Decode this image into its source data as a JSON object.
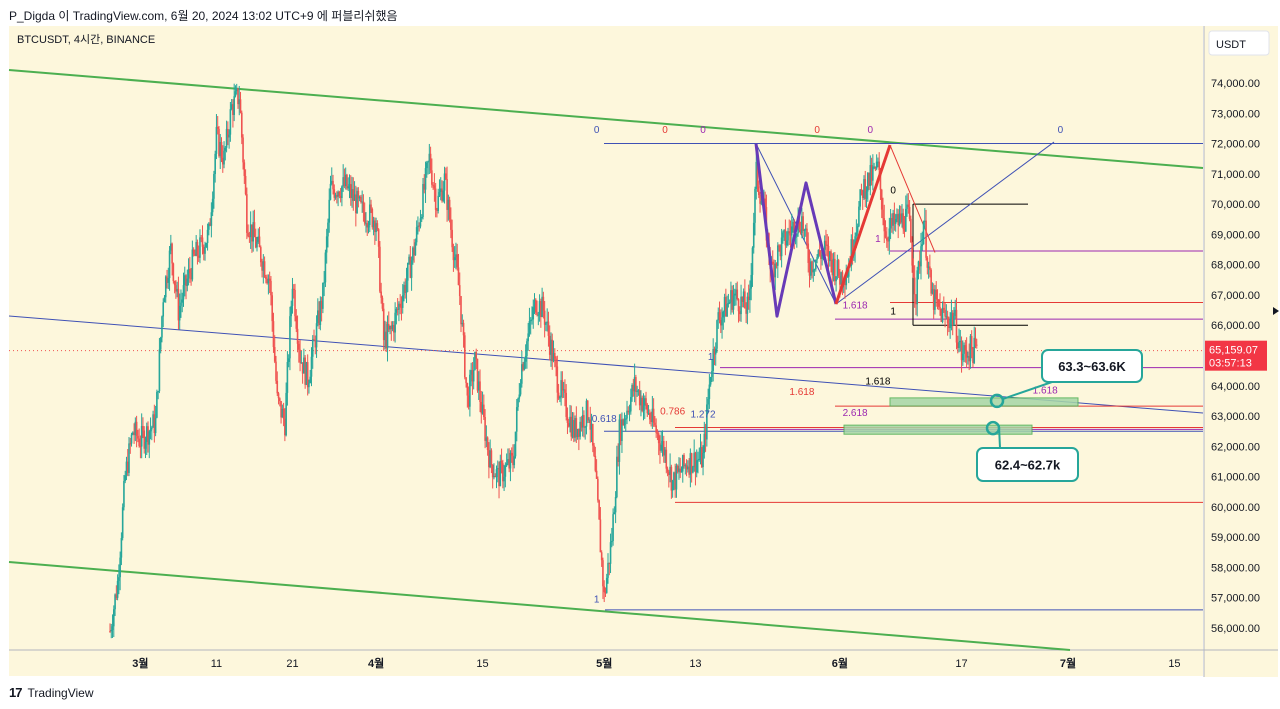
{
  "header": {
    "publisher_line": "P_Digda 이 TradingView.com, 6월 20, 2024 13:02 UTC+9 에 퍼블리쉬했음"
  },
  "footer": {
    "logo_mark": "17",
    "logo_text": "TradingView"
  },
  "colors": {
    "background": "#fdf7dc",
    "channel_green": "#4caf50",
    "candle_up": "#26a69a",
    "candle_down": "#ef5350",
    "fib_blue": "#3f51b5",
    "fib_purple": "#9c27b0",
    "fib_red": "#e53935",
    "pattern_purple": "#673ab7",
    "pattern_red": "#e53935",
    "callout_border": "#26a69a",
    "price_badge": "#f23645"
  },
  "chart_data": {
    "type": "candlestick",
    "symbol_label": "BTCUSDT, 4시간, BINANCE",
    "currency_label": "USDT",
    "ylim": [
      55300,
      75000
    ],
    "y_ticks": [
      "74,000.00",
      "73,000.00",
      "72,000.00",
      "71,000.00",
      "70,000.00",
      "69,000.00",
      "68,000.00",
      "67,000.00",
      "66,000.00",
      "65,000.00",
      "64,000.00",
      "63,000.00",
      "62,000.00",
      "61,000.00",
      "60,000.00",
      "59,000.00",
      "58,000.00",
      "57,000.00",
      "56,000.00"
    ],
    "y_tick_values": [
      74000,
      73000,
      72000,
      71000,
      70000,
      69000,
      68000,
      67000,
      66000,
      65000,
      64000,
      63000,
      62000,
      61000,
      60000,
      59000,
      58000,
      57000,
      56000
    ],
    "x_ticks": [
      {
        "label": "3월",
        "date": "2024-03-01",
        "bold": true
      },
      {
        "label": "11",
        "date": "2024-03-11",
        "bold": false
      },
      {
        "label": "21",
        "date": "2024-03-21",
        "bold": false
      },
      {
        "label": "4월",
        "date": "2024-04-01",
        "bold": true
      },
      {
        "label": "15",
        "date": "2024-04-15",
        "bold": false
      },
      {
        "label": "5월",
        "date": "2024-05-01",
        "bold": true
      },
      {
        "label": "13",
        "date": "2024-05-13",
        "bold": false
      },
      {
        "label": "6월",
        "date": "2024-06-01",
        "bold": true
      },
      {
        "label": "17",
        "date": "2024-06-17",
        "bold": false
      },
      {
        "label": "7월",
        "date": "2024-07-01",
        "bold": true
      },
      {
        "label": "15",
        "date": "2024-07-15",
        "bold": false
      }
    ],
    "price_now": "65,159.07",
    "price_value": 65159.07,
    "countdown": "03:57:13",
    "path_points": [
      [
        "2024-02-26",
        55900
      ],
      [
        "2024-02-27",
        57500
      ],
      [
        "2024-02-28",
        61000
      ],
      [
        "2024-02-29",
        62500
      ],
      [
        "2024-03-01",
        62200
      ],
      [
        "2024-03-03",
        62800
      ],
      [
        "2024-03-04",
        67000
      ],
      [
        "2024-03-05",
        68500
      ],
      [
        "2024-03-06",
        66500
      ],
      [
        "2024-03-08",
        68200
      ],
      [
        "2024-03-10",
        69000
      ],
      [
        "2024-03-11",
        72200
      ],
      [
        "2024-03-12",
        71500
      ],
      [
        "2024-03-13",
        73200
      ],
      [
        "2024-03-14",
        73600
      ],
      [
        "2024-03-15",
        69500
      ],
      [
        "2024-03-17",
        68200
      ],
      [
        "2024-03-18",
        67500
      ],
      [
        "2024-03-19",
        63500
      ],
      [
        "2024-03-20",
        62800
      ],
      [
        "2024-03-21",
        67500
      ],
      [
        "2024-03-22",
        65000
      ],
      [
        "2024-03-23",
        64200
      ],
      [
        "2024-03-25",
        67000
      ],
      [
        "2024-03-26",
        70500
      ],
      [
        "2024-03-28",
        70600
      ],
      [
        "2024-03-30",
        69800
      ],
      [
        "2024-04-01",
        69500
      ],
      [
        "2024-04-02",
        65500
      ],
      [
        "2024-04-03",
        65800
      ],
      [
        "2024-04-05",
        67500
      ],
      [
        "2024-04-06",
        68500
      ],
      [
        "2024-04-08",
        71500
      ],
      [
        "2024-04-09",
        70000
      ],
      [
        "2024-04-10",
        70800
      ],
      [
        "2024-04-12",
        67000
      ],
      [
        "2024-04-13",
        63500
      ],
      [
        "2024-04-14",
        64800
      ],
      [
        "2024-04-15",
        63000
      ],
      [
        "2024-04-16",
        61500
      ],
      [
        "2024-04-17",
        61000
      ],
      [
        "2024-04-19",
        61500
      ],
      [
        "2024-04-20",
        64500
      ],
      [
        "2024-04-22",
        66800
      ],
      [
        "2024-04-23",
        66500
      ],
      [
        "2024-04-25",
        64000
      ],
      [
        "2024-04-27",
        62500
      ],
      [
        "2024-04-29",
        63200
      ],
      [
        "2024-04-30",
        60500
      ],
      [
        "2024-05-01",
        57000
      ],
      [
        "2024-05-02",
        59000
      ],
      [
        "2024-05-03",
        62500
      ],
      [
        "2024-05-05",
        64000
      ],
      [
        "2024-05-07",
        63000
      ],
      [
        "2024-05-09",
        61800
      ],
      [
        "2024-05-10",
        60800
      ],
      [
        "2024-05-12",
        61500
      ],
      [
        "2024-05-14",
        61600
      ],
      [
        "2024-05-15",
        64500
      ],
      [
        "2024-05-16",
        66200
      ],
      [
        "2024-05-18",
        67000
      ],
      [
        "2024-05-20",
        66500
      ],
      [
        "2024-05-21",
        71000
      ],
      [
        "2024-05-22",
        69800
      ],
      [
        "2024-05-23",
        67800
      ],
      [
        "2024-05-24",
        68500
      ],
      [
        "2024-05-26",
        69300
      ],
      [
        "2024-05-27",
        69500
      ],
      [
        "2024-05-28",
        68000
      ],
      [
        "2024-05-30",
        68500
      ],
      [
        "2024-06-01",
        67600
      ],
      [
        "2024-06-02",
        67800
      ],
      [
        "2024-06-04",
        70500
      ],
      [
        "2024-06-06",
        71200
      ],
      [
        "2024-06-07",
        69000
      ],
      [
        "2024-06-08",
        69300
      ],
      [
        "2024-06-10",
        69600
      ],
      [
        "2024-06-11",
        67000
      ],
      [
        "2024-06-12",
        69500
      ],
      [
        "2024-06-13",
        67000
      ],
      [
        "2024-06-14",
        66500
      ],
      [
        "2024-06-15",
        66200
      ],
      [
        "2024-06-16",
        66300
      ],
      [
        "2024-06-17",
        65000
      ],
      [
        "2024-06-18",
        65200
      ],
      [
        "2024-06-19",
        65159
      ]
    ],
    "annotations": {
      "callouts": [
        {
          "text": "63.3~63.6K",
          "anchor_date": "2024-06-21",
          "anchor_price": 63500
        },
        {
          "text": "62.4~62.7k",
          "anchor_date": "2024-06-21",
          "anchor_price": 62600
        }
      ],
      "fib_labels": [
        {
          "text": "0",
          "date": "2024-04-30",
          "price": 72350,
          "color": "fib_blue"
        },
        {
          "text": "0",
          "date": "2024-05-09",
          "price": 72350,
          "color": "fib_red"
        },
        {
          "text": "0",
          "date": "2024-05-14",
          "price": 72350,
          "color": "fib_purple"
        },
        {
          "text": "0",
          "date": "2024-05-29",
          "price": 72350,
          "color": "fib_red"
        },
        {
          "text": "0",
          "date": "2024-06-05",
          "price": 72350,
          "color": "fib_purple"
        },
        {
          "text": "0",
          "date": "2024-06-30",
          "price": 72350,
          "color": "fib_blue"
        },
        {
          "text": "0",
          "date": "2024-06-08",
          "price": 70350,
          "color": "black"
        },
        {
          "text": "1",
          "date": "2024-06-06",
          "price": 68750,
          "color": "fib_purple"
        },
        {
          "text": "1",
          "date": "2024-06-08",
          "price": 66350,
          "color": "black"
        },
        {
          "text": "1.618",
          "date": "2024-06-03",
          "price": 66550,
          "color": "fib_purple"
        },
        {
          "text": "1",
          "date": "2024-05-15",
          "price": 64850,
          "color": "fib_blue"
        },
        {
          "text": "1.618",
          "date": "2024-06-06",
          "price": 64050,
          "color": "black"
        },
        {
          "text": "1.618",
          "date": "2024-05-27",
          "price": 63700,
          "color": "fib_red"
        },
        {
          "text": "1.618",
          "date": "2024-06-28",
          "price": 63750,
          "color": "fib_purple"
        },
        {
          "text": "0.786",
          "date": "2024-05-10",
          "price": 63050,
          "color": "fib_red"
        },
        {
          "text": "1.272",
          "date": "2024-05-14",
          "price": 62950,
          "color": "fib_blue"
        },
        {
          "text": "0.618",
          "date": "2024-05-01",
          "price": 62800,
          "color": "fib_blue"
        },
        {
          "text": "2.618",
          "date": "2024-06-03",
          "price": 63000,
          "color": "fib_purple"
        },
        {
          "text": "1",
          "date": "2024-04-30",
          "price": 56850,
          "color": "fib_blue"
        }
      ]
    }
  }
}
